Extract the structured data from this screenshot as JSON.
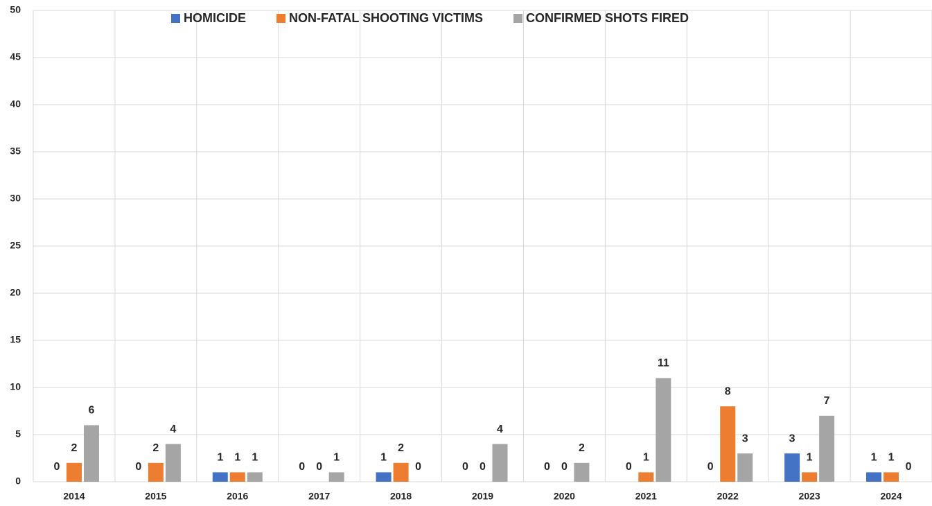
{
  "chart_data": {
    "type": "bar",
    "categories": [
      "2014",
      "2015",
      "2016",
      "2017",
      "2018",
      "2019",
      "2020",
      "2021",
      "2022",
      "2023",
      "2024"
    ],
    "series": [
      {
        "name": "HOMICIDE",
        "color": "#4472c4",
        "values": [
          0,
          0,
          1,
          0,
          1,
          0,
          0,
          0,
          0,
          3,
          1
        ]
      },
      {
        "name": "NON-FATAL SHOOTING VICTIMS",
        "color": "#ed7d31",
        "values": [
          2,
          2,
          1,
          0,
          2,
          0,
          0,
          1,
          8,
          1,
          1
        ]
      },
      {
        "name": "CONFIRMED SHOTS FIRED",
        "color": "#a5a5a5",
        "values": [
          6,
          4,
          1,
          1,
          0,
          4,
          2,
          11,
          3,
          7,
          0
        ]
      }
    ],
    "ylim": [
      0,
      50
    ],
    "yticks": [
      0,
      5,
      10,
      15,
      20,
      25,
      30,
      35,
      40,
      45,
      50
    ],
    "grid": true,
    "legend": "top"
  }
}
